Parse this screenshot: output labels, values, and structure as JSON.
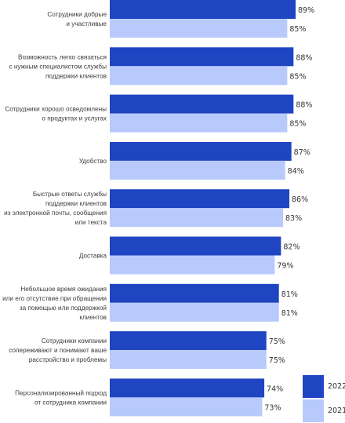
{
  "chart_data": {
    "type": "bar",
    "orientation": "horizontal",
    "categories": [
      [
        "Сотрудники добрые",
        "и участливые"
      ],
      [
        "Возможность легко связаться",
        "с нужным специалистом службы",
        "поддержки клиентов"
      ],
      [
        "Сотрудники хорошо осведомлены",
        "о продуктах и услугах"
      ],
      [
        "Удобство"
      ],
      [
        "Быстрые ответы службы",
        "поддержки клиентов",
        "из электронной почты, сообщения",
        "или текста"
      ],
      [
        "Доставка"
      ],
      [
        "Небольшое время ожидания",
        "или его отсутствие при обращении",
        "за помощью или поддержкой",
        "клиентов"
      ],
      [
        "Сотрудники компании",
        "сопереживают и понимают ваше",
        "расстройство и проблемы"
      ],
      [
        "Персонализированный подход",
        "от сотрудника компании"
      ]
    ],
    "series": [
      {
        "name": "2022",
        "color": "#1f45c2",
        "values": [
          89,
          88,
          88,
          87,
          86,
          82,
          81,
          75,
          74
        ]
      },
      {
        "name": "2021",
        "color": "#b7cafb",
        "values": [
          85,
          85,
          85,
          84,
          83,
          79,
          81,
          75,
          73
        ]
      }
    ],
    "value_suffix": "%",
    "legend_position": "bottom-right",
    "grid": false
  }
}
